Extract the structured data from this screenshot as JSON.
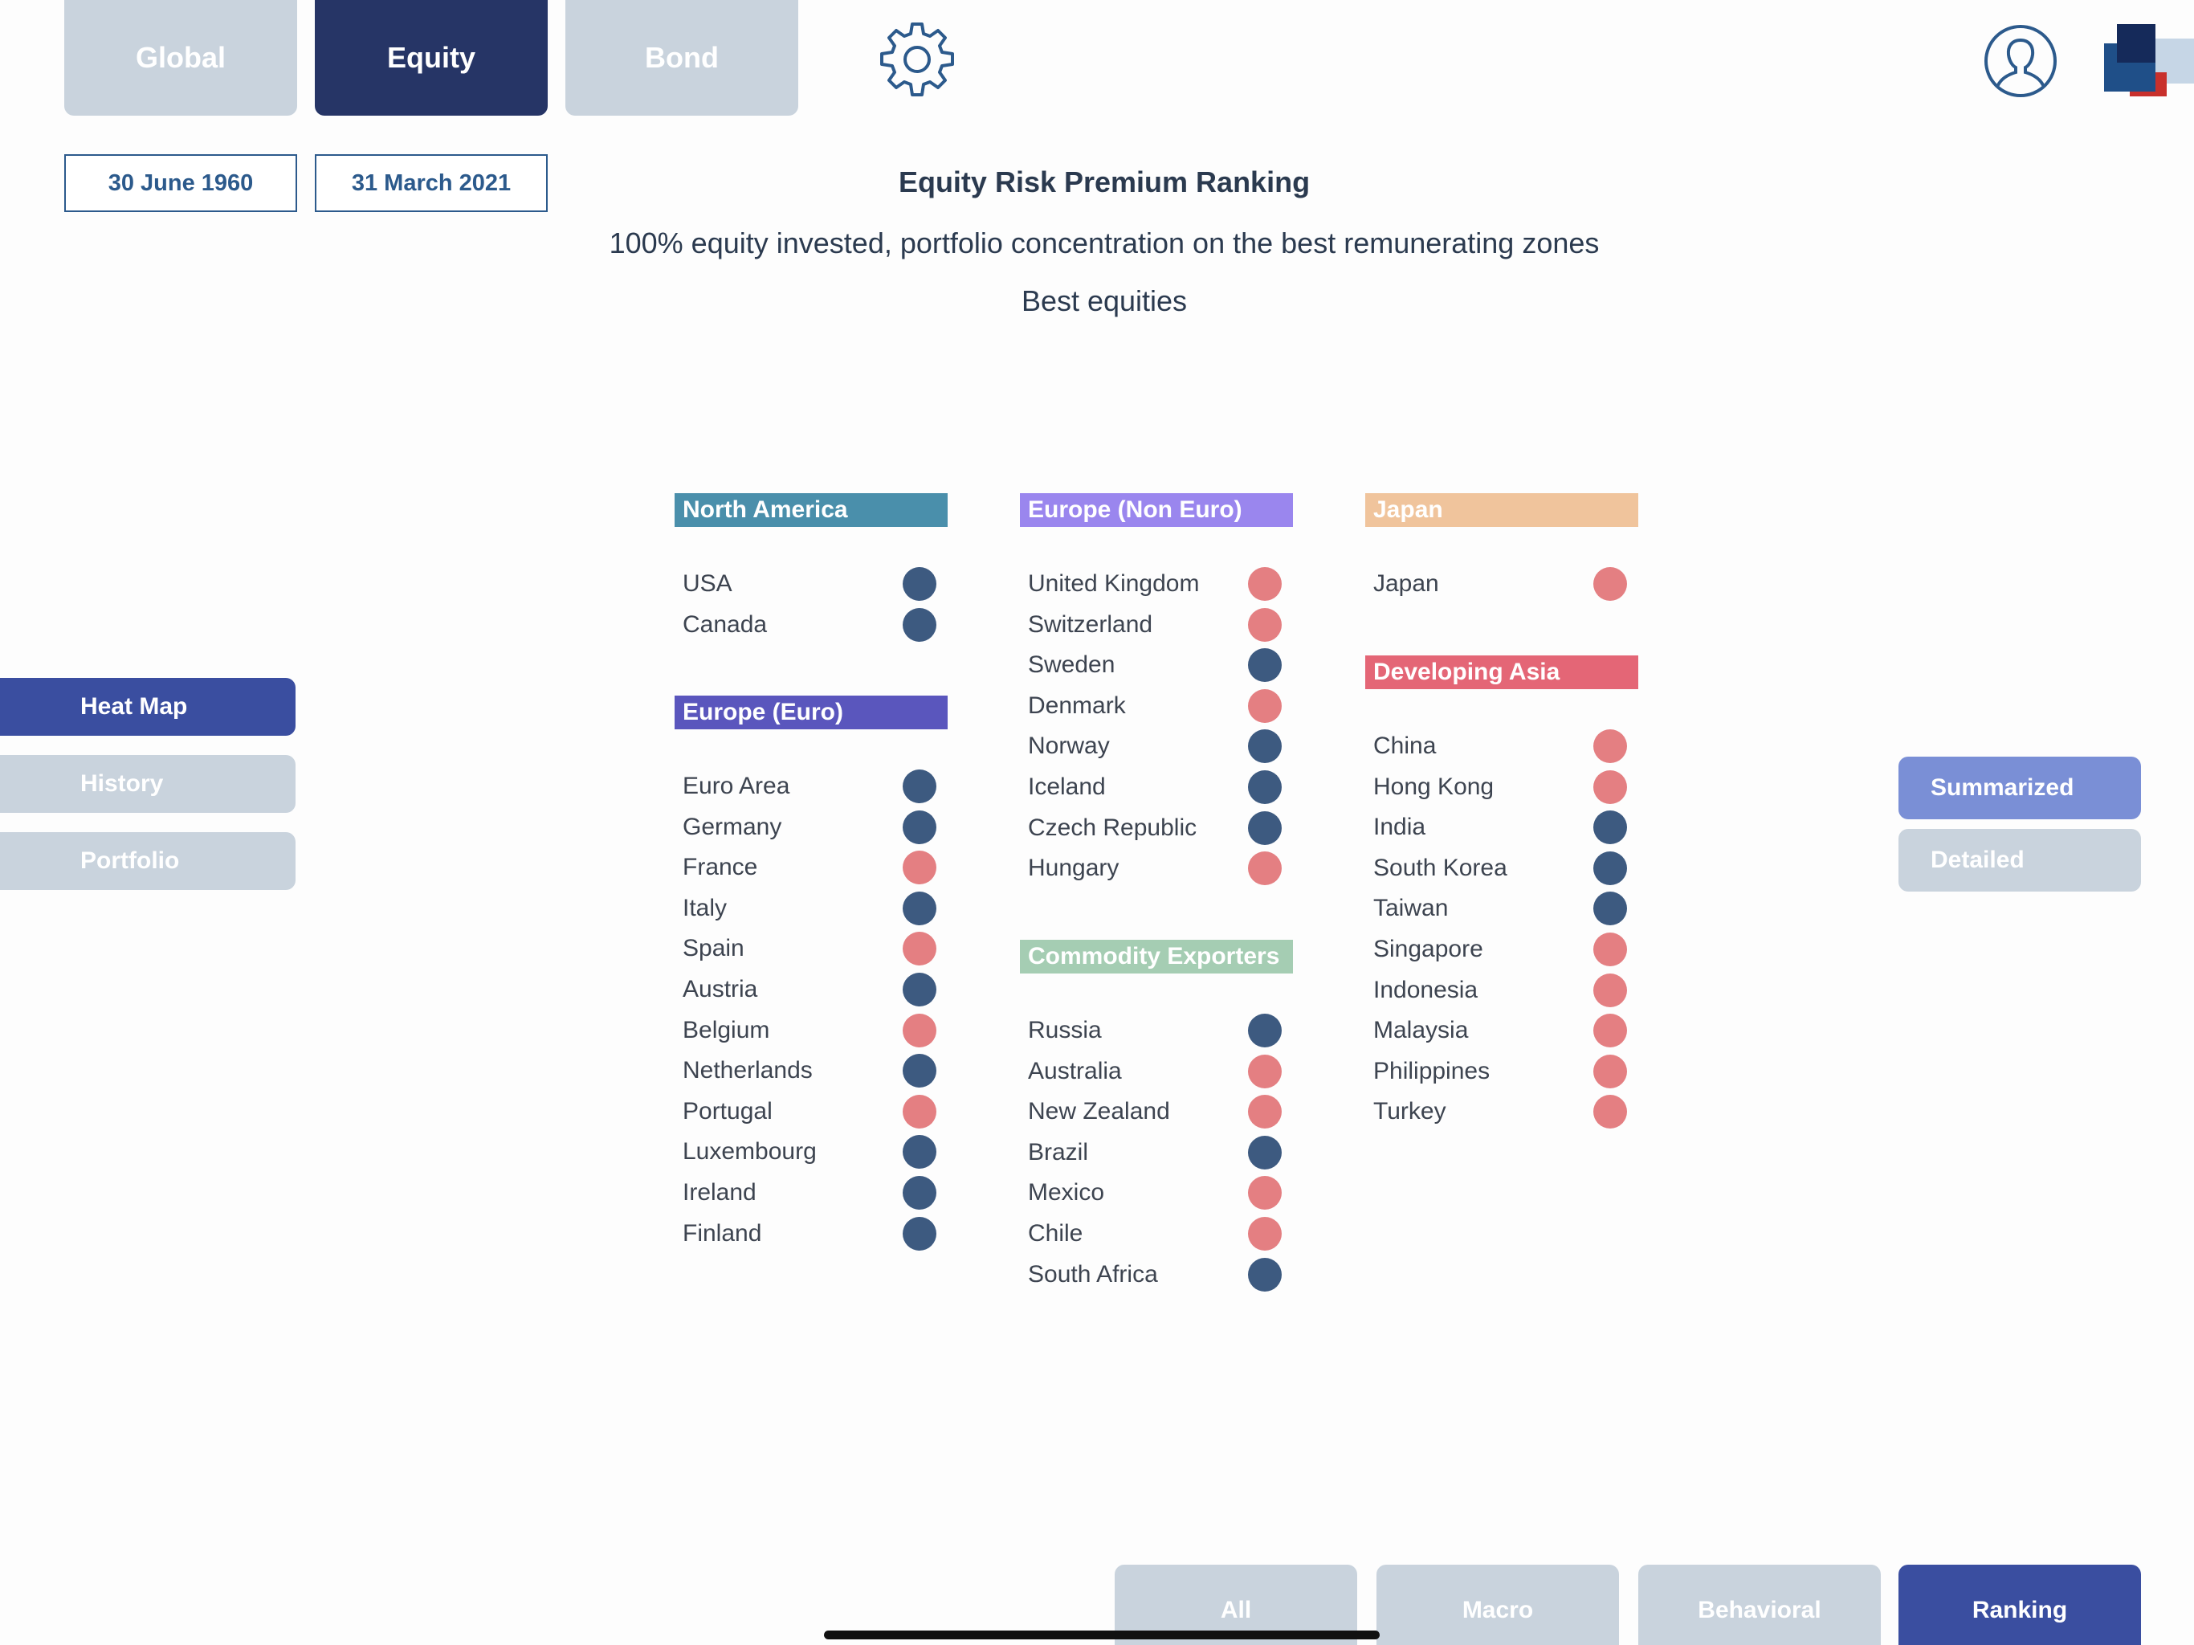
{
  "top_tabs": [
    {
      "label": "Global",
      "active": false
    },
    {
      "label": "Equity",
      "active": true
    },
    {
      "label": "Bond",
      "active": false
    }
  ],
  "icons": {
    "settings": "gear-icon",
    "user": "user-profile-icon",
    "logo": "app-logo"
  },
  "dates": {
    "start": "30 June 1960",
    "end": "31 March 2021"
  },
  "header": {
    "title": "Equity Risk Premium Ranking",
    "subtitle": "100% equity invested, portfolio concentration on the best remunerating zones",
    "subtitle2": "Best equities"
  },
  "side_nav": [
    {
      "label": "Heat Map",
      "active": true
    },
    {
      "label": "History",
      "active": false
    },
    {
      "label": "Portfolio",
      "active": false
    }
  ],
  "view_toggle": [
    {
      "label": "Summarized",
      "active": true
    },
    {
      "label": "Detailed",
      "active": false
    }
  ],
  "bottom_tabs": [
    {
      "label": "All",
      "active": false
    },
    {
      "label": "Macro",
      "active": false
    },
    {
      "label": "Behavioral",
      "active": false
    },
    {
      "label": "Ranking",
      "active": true
    }
  ],
  "status_colors": {
    "dark": "#3d5a80",
    "light": "#e47f82"
  },
  "regions": [
    {
      "name": "North America",
      "color": "#4a8fab",
      "countries": [
        {
          "name": "USA",
          "status": "dark"
        },
        {
          "name": "Canada",
          "status": "dark"
        }
      ]
    },
    {
      "name": "Europe (Euro)",
      "color": "#5a56bd",
      "countries": [
        {
          "name": "Euro Area",
          "status": "dark"
        },
        {
          "name": "Germany",
          "status": "dark"
        },
        {
          "name": "France",
          "status": "light"
        },
        {
          "name": "Italy",
          "status": "dark"
        },
        {
          "name": "Spain",
          "status": "light"
        },
        {
          "name": "Austria",
          "status": "dark"
        },
        {
          "name": "Belgium",
          "status": "light"
        },
        {
          "name": "Netherlands",
          "status": "dark"
        },
        {
          "name": "Portugal",
          "status": "light"
        },
        {
          "name": "Luxembourg",
          "status": "dark"
        },
        {
          "name": "Ireland",
          "status": "dark"
        },
        {
          "name": "Finland",
          "status": "dark"
        }
      ]
    },
    {
      "name": "Europe (Non Euro)",
      "color": "#9a86ee",
      "countries": [
        {
          "name": "United Kingdom",
          "status": "light"
        },
        {
          "name": "Switzerland",
          "status": "light"
        },
        {
          "name": "Sweden",
          "status": "dark"
        },
        {
          "name": "Denmark",
          "status": "light"
        },
        {
          "name": "Norway",
          "status": "dark"
        },
        {
          "name": "Iceland",
          "status": "dark"
        },
        {
          "name": "Czech Republic",
          "status": "dark"
        },
        {
          "name": "Hungary",
          "status": "light"
        }
      ]
    },
    {
      "name": "Commodity Exporters",
      "color": "#a5cdb3",
      "countries": [
        {
          "name": "Russia",
          "status": "dark"
        },
        {
          "name": "Australia",
          "status": "light"
        },
        {
          "name": "New Zealand",
          "status": "light"
        },
        {
          "name": "Brazil",
          "status": "dark"
        },
        {
          "name": "Mexico",
          "status": "light"
        },
        {
          "name": "Chile",
          "status": "light"
        },
        {
          "name": "South Africa",
          "status": "dark"
        }
      ]
    },
    {
      "name": "Japan",
      "color": "#f0c49c",
      "countries": [
        {
          "name": "Japan",
          "status": "light"
        }
      ]
    },
    {
      "name": "Developing Asia",
      "color": "#e46676",
      "countries": [
        {
          "name": "China",
          "status": "light"
        },
        {
          "name": "Hong Kong",
          "status": "light"
        },
        {
          "name": "India",
          "status": "dark"
        },
        {
          "name": "South Korea",
          "status": "dark"
        },
        {
          "name": "Taiwan",
          "status": "dark"
        },
        {
          "name": "Singapore",
          "status": "light"
        },
        {
          "name": "Indonesia",
          "status": "light"
        },
        {
          "name": "Malaysia",
          "status": "light"
        },
        {
          "name": "Philippines",
          "status": "light"
        },
        {
          "name": "Turkey",
          "status": "light"
        }
      ]
    }
  ]
}
